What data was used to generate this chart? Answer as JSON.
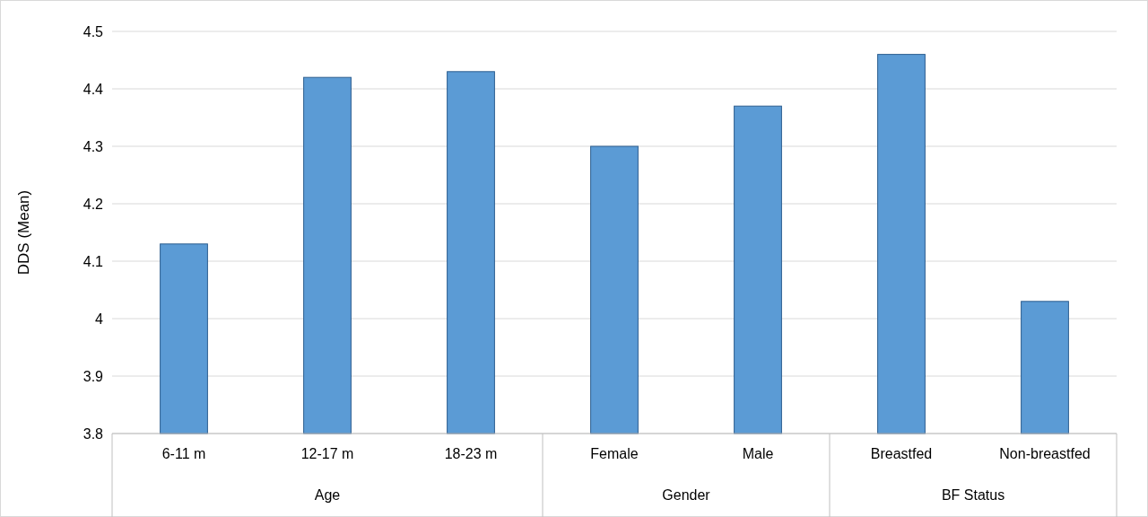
{
  "chart_data": {
    "type": "bar",
    "ylabel": "DDS (Mean)",
    "categories": [
      "6-11 m",
      "12-17 m",
      "18-23 m",
      "Female",
      "Male",
      "Breastfed",
      "Non-breastfed"
    ],
    "values": [
      4.13,
      4.42,
      4.43,
      4.3,
      4.37,
      4.46,
      4.03
    ],
    "color": "#5b9bd5",
    "ylim": [
      3.8,
      4.5
    ],
    "yticks": [
      3.8,
      3.9,
      4,
      4.1,
      4.2,
      4.3,
      4.4,
      4.5
    ],
    "grid": "y",
    "annotations": [
      "Age",
      "Gender",
      "BF Status"
    ]
  }
}
